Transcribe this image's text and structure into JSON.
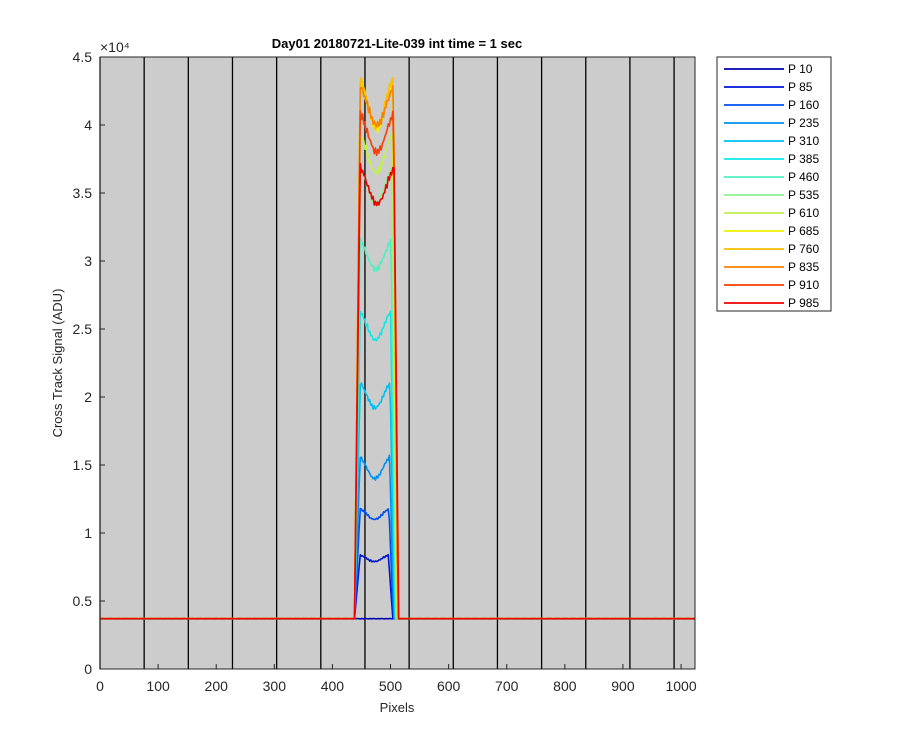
{
  "chart_data": {
    "type": "line",
    "title": "Day01 20180721-Lite-039 int time = 1 sec",
    "xlabel": "Pixels",
    "ylabel": "Cross Track Signal (ADU)",
    "xlim": [
      0,
      1024
    ],
    "ylim": [
      0,
      45000
    ],
    "xticks": [
      0,
      100,
      200,
      300,
      400,
      500,
      600,
      700,
      800,
      900,
      1000
    ],
    "xtick_labels": [
      "0",
      "100",
      "200",
      "300",
      "400",
      "500",
      "600",
      "700",
      "800",
      "900",
      "1000"
    ],
    "yticks": [
      0,
      5000,
      10000,
      15000,
      20000,
      25000,
      30000,
      35000,
      40000,
      45000
    ],
    "ytick_labels": [
      "0",
      "0.5",
      "1",
      "1.5",
      "2",
      "2.5",
      "3",
      "3.5",
      "4",
      "4.5"
    ],
    "y_exponent_label": "×10⁴",
    "vertical_gridlines_x": [
      0,
      76,
      152,
      228,
      304,
      380,
      456,
      532,
      608,
      684,
      760,
      836,
      912,
      988
    ],
    "background_color": "#cccccc",
    "legend_position": "outside-top-right",
    "baseline_level": 3700,
    "series": [
      {
        "name": "P 10",
        "color": "#0000b0",
        "left_edge": 440,
        "right_edge": 500,
        "level": 3700,
        "dip": 0
      },
      {
        "name": "P 85",
        "color": "#0014d8",
        "left_edge": 440,
        "right_edge": 500,
        "level": 8500,
        "dip": 600
      },
      {
        "name": "P 160",
        "color": "#0050f0",
        "left_edge": 440,
        "right_edge": 501,
        "level": 12000,
        "dip": 1000
      },
      {
        "name": "P 235",
        "color": "#0090f0",
        "left_edge": 440,
        "right_edge": 502,
        "level": 16000,
        "dip": 2000
      },
      {
        "name": "P 310",
        "color": "#00c0f0",
        "left_edge": 440,
        "right_edge": 503,
        "level": 21500,
        "dip": 2300
      },
      {
        "name": "P 385",
        "color": "#10e8e8",
        "left_edge": 440,
        "right_edge": 504,
        "level": 26800,
        "dip": 2600
      },
      {
        "name": "P 460",
        "color": "#50f0c0",
        "left_edge": 440,
        "right_edge": 505,
        "level": 32000,
        "dip": 2600
      },
      {
        "name": "P 535",
        "color": "#90f090",
        "left_edge": 440,
        "right_edge": 506,
        "level": 37500,
        "dip": 3300
      },
      {
        "name": "P 610",
        "color": "#c0f050",
        "left_edge": 440,
        "right_edge": 507,
        "level": 40000,
        "dip": 3500
      },
      {
        "name": "P 685",
        "color": "#f0f000",
        "left_edge": 440,
        "right_edge": 508,
        "level": 44000,
        "dip": 4300
      },
      {
        "name": "P 760",
        "color": "#f8c000",
        "left_edge": 440,
        "right_edge": 508,
        "level": 44300,
        "dip": 4400
      },
      {
        "name": "P 835",
        "color": "#f88000",
        "left_edge": 440,
        "right_edge": 509,
        "level": 43500,
        "dip": 3500
      },
      {
        "name": "P 910",
        "color": "#f84000",
        "left_edge": 440,
        "right_edge": 509,
        "level": 41500,
        "dip": 3500
      },
      {
        "name": "P 985",
        "color": "#f00000",
        "left_edge": 440,
        "right_edge": 510,
        "level": 37500,
        "dip": 3300
      }
    ]
  }
}
